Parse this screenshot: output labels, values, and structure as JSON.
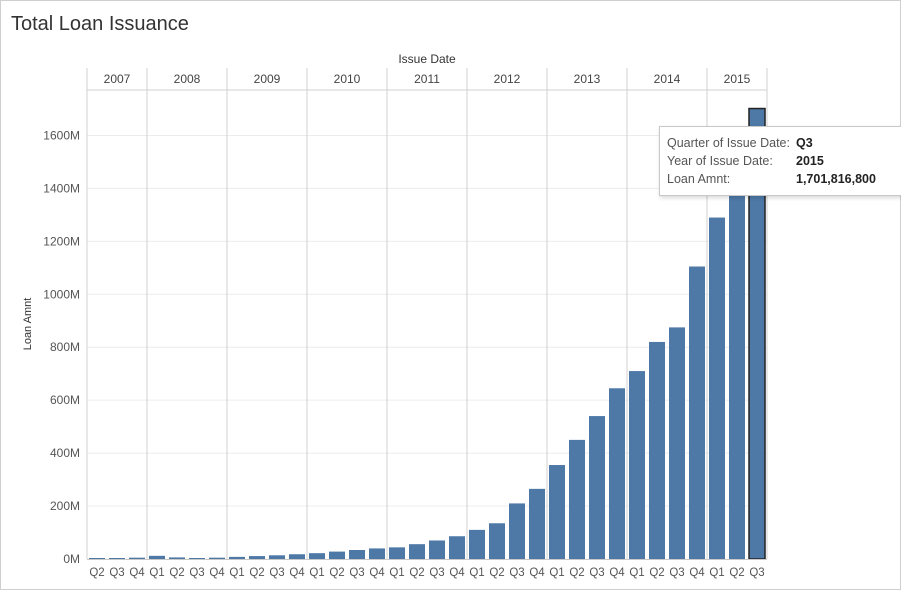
{
  "title": "Total Loan Issuance",
  "tooltip": {
    "rows": [
      {
        "label": "Quarter of Issue Date:",
        "value": "Q3"
      },
      {
        "label": "Year of Issue Date:",
        "value": "2015"
      },
      {
        "label": "Loan Amnt:",
        "value": "1,701,816,800"
      }
    ]
  },
  "chart_data": {
    "type": "bar",
    "header_label": "Issue Date",
    "ylabel": "Loan Amnt",
    "ylim": [
      0,
      1800
    ],
    "y_unit": "M",
    "y_ticks": [
      "0M",
      "200M",
      "400M",
      "600M",
      "800M",
      "1000M",
      "1200M",
      "1400M",
      "1600M"
    ],
    "grid": true,
    "bar_color": "#4e79a7",
    "highlight_index": 33,
    "years": [
      {
        "year": "2007",
        "quarters": [
          "Q2",
          "Q3",
          "Q4"
        ],
        "values": [
          1,
          1,
          5
        ]
      },
      {
        "year": "2008",
        "quarters": [
          "Q1",
          "Q2",
          "Q3",
          "Q4"
        ],
        "values": [
          12,
          6,
          2,
          5
        ]
      },
      {
        "year": "2009",
        "quarters": [
          "Q1",
          "Q2",
          "Q3",
          "Q4"
        ],
        "values": [
          8,
          11,
          14,
          18
        ]
      },
      {
        "year": "2010",
        "quarters": [
          "Q1",
          "Q2",
          "Q3",
          "Q4"
        ],
        "values": [
          22,
          28,
          34,
          40
        ]
      },
      {
        "year": "2011",
        "quarters": [
          "Q1",
          "Q2",
          "Q3",
          "Q4"
        ],
        "values": [
          44,
          56,
          70,
          86
        ]
      },
      {
        "year": "2012",
        "quarters": [
          "Q1",
          "Q2",
          "Q3",
          "Q4"
        ],
        "values": [
          110,
          135,
          210,
          265
        ]
      },
      {
        "year": "2013",
        "quarters": [
          "Q1",
          "Q2",
          "Q3",
          "Q4"
        ],
        "values": [
          355,
          450,
          540,
          645
        ]
      },
      {
        "year": "2014",
        "quarters": [
          "Q1",
          "Q2",
          "Q3",
          "Q4"
        ],
        "values": [
          710,
          820,
          875,
          1105
        ]
      },
      {
        "year": "2015",
        "quarters": [
          "Q1",
          "Q2",
          "Q3"
        ],
        "values": [
          1290,
          1410,
          1701.8168
        ]
      }
    ]
  }
}
